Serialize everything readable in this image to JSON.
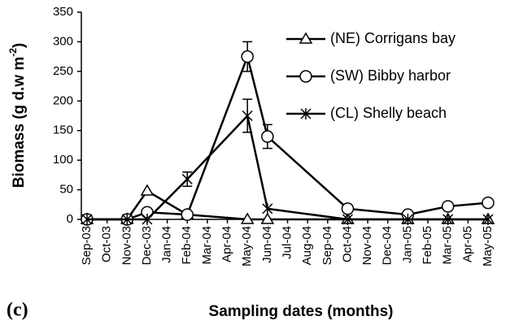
{
  "chart_data": {
    "type": "line",
    "ylabel": "Biomass (g d.w m",
    "ylabel_sup": "-2",
    "ylabel_end": ")",
    "xlabel": "Sampling dates (months)",
    "panel": "(c)",
    "categories": [
      "Sep-03",
      "Oct-03",
      "Nov-03",
      "Dec-03",
      "Jan-04",
      "Feb-04",
      "Mar-04",
      "Apr-04",
      "May-04",
      "Jun-04",
      "Jul-04",
      "Aug-04",
      "Sep-04",
      "Oct-04",
      "Nov-04",
      "Dec-04",
      "Jan-05",
      "Feb-05",
      "Mar-05",
      "Apr-05",
      "May-05"
    ],
    "ylim": [
      0,
      350
    ],
    "yticks": [
      0,
      50,
      100,
      150,
      200,
      250,
      300,
      350
    ],
    "series": [
      {
        "name": "(NE) Corrigans bay",
        "color": "#000000",
        "marker": "triangle",
        "values": [
          0,
          null,
          0,
          48,
          null,
          8,
          null,
          null,
          0,
          0,
          null,
          null,
          null,
          0,
          null,
          null,
          0,
          null,
          0,
          null,
          0
        ],
        "errors": [
          null,
          null,
          null,
          null,
          null,
          null,
          null,
          null,
          null,
          null,
          null,
          null,
          null,
          null,
          null,
          null,
          null,
          null,
          null,
          null,
          null
        ]
      },
      {
        "name": "(SW) Bibby harbor",
        "color": "#000000",
        "marker": "circle",
        "values": [
          0,
          null,
          0,
          12,
          null,
          8,
          null,
          null,
          275,
          140,
          null,
          null,
          null,
          18,
          null,
          null,
          8,
          null,
          22,
          null,
          28
        ],
        "errors": [
          null,
          null,
          null,
          null,
          null,
          null,
          null,
          null,
          25,
          20,
          null,
          null,
          null,
          null,
          null,
          null,
          null,
          null,
          null,
          null,
          null
        ]
      },
      {
        "name": "(CL) Shelly beach",
        "color": "#000000",
        "marker": "star",
        "values": [
          0,
          null,
          0,
          0,
          null,
          68,
          null,
          null,
          175,
          18,
          null,
          null,
          null,
          0,
          null,
          null,
          0,
          null,
          0,
          null,
          0
        ],
        "errors": [
          null,
          null,
          null,
          null,
          null,
          12,
          null,
          null,
          28,
          null,
          null,
          null,
          null,
          null,
          null,
          null,
          null,
          null,
          null,
          null,
          null
        ]
      }
    ]
  }
}
